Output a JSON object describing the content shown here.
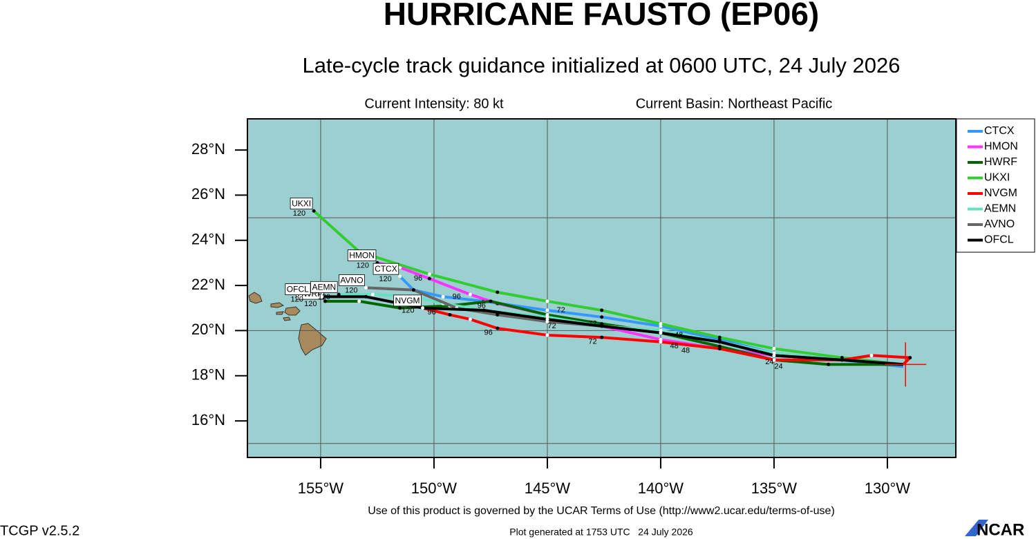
{
  "chart_data": {
    "type": "track",
    "title": "HURRICANE FAUSTO (EP06)",
    "subtitle": "Late-cycle track guidance initialized at 0600 UTC, 24 July 2026",
    "intensity": "Current Intensity: 80 kt",
    "basin": "Current Basin: Northeast Pacific",
    "terms": "Use of this product is governed by the UCAR Terms of Use (http://www2.ucar.edu/terms-of-use)",
    "version": "TCGP v2.5.2",
    "generated": "Plot generated at 1753 UTC   24 July 2026",
    "logo": "NCAR",
    "background": "#9ccfcf",
    "xlim": [
      -158.23,
      -126.98
    ],
    "ylim": [
      14.38,
      29.38
    ],
    "xticks": [
      {
        "value": -155,
        "label": "155°W"
      },
      {
        "value": -150,
        "label": "150°W"
      },
      {
        "value": -145,
        "label": "145°W"
      },
      {
        "value": -140,
        "label": "140°W"
      },
      {
        "value": -135,
        "label": "135°W"
      },
      {
        "value": -130,
        "label": "130°W"
      }
    ],
    "yticks": [
      {
        "value": 16,
        "label": "16°N"
      },
      {
        "value": 18,
        "label": "18°N"
      },
      {
        "value": 20,
        "label": "20°N"
      },
      {
        "value": 22,
        "label": "22°N"
      },
      {
        "value": 24,
        "label": "24°N"
      },
      {
        "value": 26,
        "label": "26°N"
      },
      {
        "value": 28,
        "label": "28°N"
      }
    ],
    "ygrid": [
      15,
      20,
      25
    ],
    "current_position": {
      "x": -129.2,
      "y": 18.5,
      "color": "#ff0000"
    },
    "series": [
      {
        "name": "CTCX",
        "color": "#3399ff",
        "end_label": "120",
        "x": [
          -129.3,
          -132.0,
          -135.0,
          -137.4,
          -140.0,
          -142.6,
          -145.0,
          -147.8,
          -149.6,
          -150.9,
          -151.5
        ],
        "y": [
          18.4,
          18.7,
          19.0,
          19.6,
          20.2,
          20.6,
          20.9,
          21.3,
          21.5,
          21.8,
          22.4
        ]
      },
      {
        "name": "HMON",
        "color": "#ff33ff",
        "end_label": "120",
        "x": [
          -129.3,
          -132.0,
          -135.0,
          -137.4,
          -140.0,
          -142.6,
          -145.0,
          -147.2,
          -148.4,
          -150.2,
          -151.5,
          -152.5
        ],
        "y": [
          18.5,
          18.7,
          18.9,
          19.2,
          19.6,
          20.2,
          20.7,
          21.2,
          21.6,
          22.3,
          22.8,
          23.0
        ]
      },
      {
        "name": "HWRF",
        "color": "#006600",
        "end_label": "120",
        "x": [
          -129.3,
          -132.6,
          -135.0,
          -137.4,
          -140.0,
          -142.6,
          -145.0,
          -147.5,
          -149.3,
          -151.5,
          -153.3,
          -154.8
        ],
        "y": [
          18.5,
          18.5,
          18.7,
          19.3,
          19.9,
          20.3,
          20.7,
          21.3,
          21.1,
          21.0,
          21.3,
          21.3
        ]
      },
      {
        "name": "UKXI",
        "color": "#33cc33",
        "end_label": "120",
        "x": [
          -129.3,
          -132.0,
          -135.0,
          -137.4,
          -140.0,
          -142.6,
          -145.0,
          -147.2,
          -150.2,
          -152.7,
          -153.3,
          -155.3
        ],
        "y": [
          18.5,
          18.8,
          19.2,
          19.7,
          20.3,
          20.9,
          21.3,
          21.7,
          22.5,
          23.3,
          23.5,
          25.3
        ]
      },
      {
        "name": "NVGM",
        "color": "#ff0000",
        "end_label": "120",
        "x": [
          -129.3,
          -129.0,
          -130.7,
          -132.0,
          -135.0,
          -137.4,
          -140.0,
          -142.6,
          -145.0,
          -147.2,
          -148.4,
          -149.3,
          -150.5
        ],
        "y": [
          18.5,
          18.8,
          18.9,
          18.7,
          18.7,
          19.2,
          19.5,
          19.7,
          19.8,
          20.1,
          20.5,
          20.7,
          21.0
        ]
      },
      {
        "name": "AEMN",
        "color": "#66e0c0",
        "end_label": "120",
        "x": [
          -129.3,
          -132.0,
          -135.0,
          -137.4,
          -140.0,
          -142.6,
          -145.0,
          -147.8,
          -149.6,
          -150.9,
          -152.7,
          -154.2
        ],
        "y": [
          18.5,
          18.7,
          19.0,
          19.5,
          20.0,
          20.2,
          20.6,
          20.9,
          21.2,
          21.5,
          21.6,
          21.6
        ]
      },
      {
        "name": "AVNO",
        "color": "#666666",
        "end_label": "120",
        "x": [
          -129.3,
          -132.0,
          -135.0,
          -137.4,
          -140.0,
          -142.6,
          -145.0,
          -147.2,
          -149.0,
          -150.9,
          -153.0
        ],
        "y": [
          18.5,
          18.7,
          18.9,
          19.5,
          19.9,
          20.2,
          20.4,
          20.7,
          21.0,
          21.8,
          21.9
        ]
      },
      {
        "name": "OFCL",
        "color": "#000000",
        "end_label": "120",
        "x": [
          -129.3,
          -132.0,
          -135.0,
          -137.4,
          -140.0,
          -142.6,
          -145.0,
          -147.8,
          -150.5,
          -153.0,
          -155.4
        ],
        "y": [
          18.5,
          18.7,
          18.9,
          19.5,
          19.9,
          20.2,
          20.5,
          20.9,
          21.0,
          21.5,
          21.5
        ]
      }
    ],
    "hour_labels": [
      {
        "text": "96",
        "x": -150.7,
        "y": 22.3
      },
      {
        "text": "96",
        "x": -149.0,
        "y": 21.5
      },
      {
        "text": "96",
        "x": -147.9,
        "y": 21.1
      },
      {
        "text": "96",
        "x": -147.6,
        "y": 19.9
      },
      {
        "text": "96",
        "x": -150.1,
        "y": 20.8
      },
      {
        "text": "72",
        "x": -144.4,
        "y": 20.9
      },
      {
        "text": "72",
        "x": -144.8,
        "y": 20.2
      },
      {
        "text": "72",
        "x": -143.0,
        "y": 19.5
      },
      {
        "text": "72",
        "x": -143.0,
        "y": 20.3
      },
      {
        "text": "48",
        "x": -139.2,
        "y": 19.8
      },
      {
        "text": "48",
        "x": -139.4,
        "y": 19.3
      },
      {
        "text": "48",
        "x": -138.9,
        "y": 19.1
      },
      {
        "text": "24",
        "x": -135.2,
        "y": 18.6
      },
      {
        "text": "24",
        "x": -134.8,
        "y": 18.4
      }
    ]
  }
}
